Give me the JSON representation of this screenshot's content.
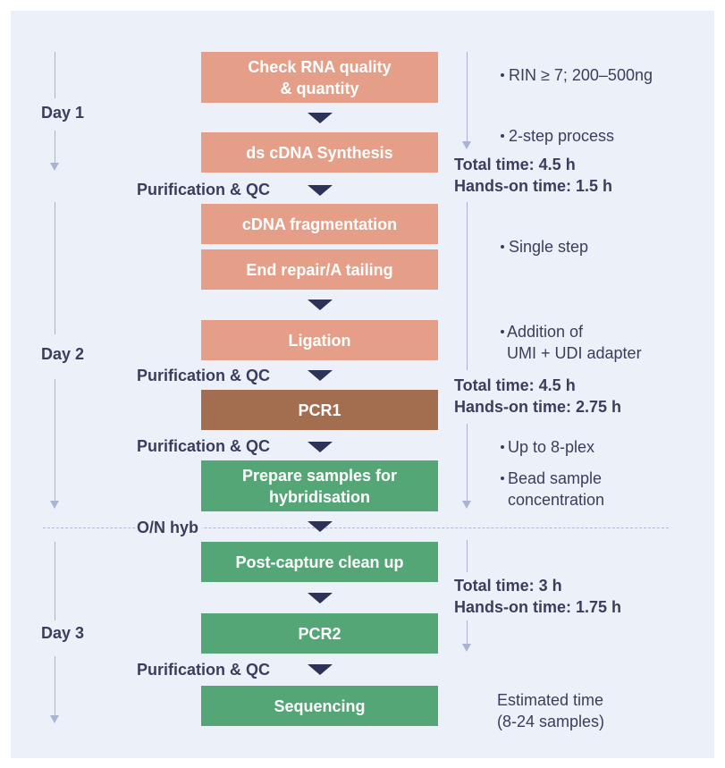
{
  "steps": [
    {
      "line1": "Check RNA quality",
      "line2": "& quantity",
      "color": "salmon"
    },
    {
      "line1": "ds cDNA Synthesis",
      "line2": "",
      "color": "salmon"
    },
    {
      "line1": "cDNA fragmentation",
      "line2": "",
      "color": "salmon"
    },
    {
      "line1": "End repair/A tailing",
      "line2": "",
      "color": "salmon"
    },
    {
      "line1": "Ligation",
      "line2": "",
      "color": "salmon"
    },
    {
      "line1": "PCR1",
      "line2": "",
      "color": "brown"
    },
    {
      "line1": "Prepare samples for",
      "line2": "hybridisation",
      "color": "green"
    },
    {
      "line1": "Post-capture clean up",
      "line2": "",
      "color": "green"
    },
    {
      "line1": "PCR2",
      "line2": "",
      "color": "green"
    },
    {
      "line1": "Sequencing",
      "line2": "",
      "color": "green"
    }
  ],
  "side_labels": {
    "purif1": "Purification & QC",
    "purif2": "Purification & QC",
    "purif3": "Purification & QC",
    "onhyb": "O/N hyb",
    "purif4": "Purification & QC"
  },
  "days": {
    "day1": "Day 1",
    "day2": "Day 2",
    "day3": "Day 3"
  },
  "notes": {
    "rin": "RIN ≥ 7; 200–500ng",
    "twostep": "2-step process",
    "single": "Single step",
    "addition_l1": "Addition of",
    "addition_l2": "UMI + UDI adapter",
    "upto": "Up to 8-plex",
    "bead_l1": "Bead sample",
    "bead_l2": "concentration",
    "est_l1": "Estimated time",
    "est_l2": "(8-24 samples)"
  },
  "totals": [
    {
      "total": "Total time: 4.5 h",
      "hands": "Hands-on time: 1.5 h"
    },
    {
      "total": "Total time: 4.5 h",
      "hands": "Hands-on time: 2.75 h"
    },
    {
      "total": "Total time: 3 h",
      "hands": "Hands-on time: 1.75 h"
    }
  ],
  "colors": {
    "salmon": "#e59f88",
    "brown": "#a36e50",
    "green": "#54a676",
    "text": "#3a3e5c",
    "panel": "#ecf0f8"
  }
}
